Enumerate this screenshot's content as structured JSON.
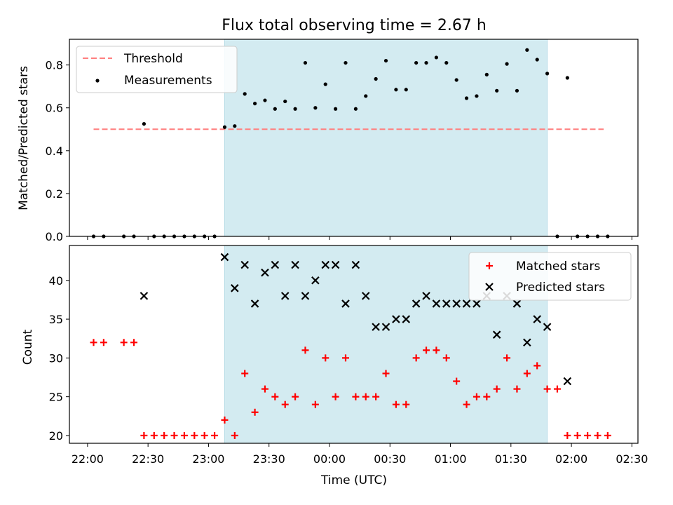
{
  "chart_data": {
    "type": "scatter",
    "title": "Flux total observing time = 2.67 h",
    "xlabel": "Time (UTC)",
    "x_tick_labels": [
      "22:00",
      "22:30",
      "23:00",
      "23:30",
      "00:00",
      "00:30",
      "01:00",
      "01:30",
      "02:00",
      "02:30"
    ],
    "x_range_minutes": [
      -9,
      273
    ],
    "shaded_span_minutes": [
      68,
      228
    ],
    "shade_color": "#d3ebf1",
    "top": {
      "ylabel": "Matched/Predicted stars",
      "ylim": [
        0,
        0.92
      ],
      "yticks": [
        "0.0",
        "0.2",
        "0.4",
        "0.6",
        "0.8"
      ],
      "legend": {
        "position": "upper-left",
        "items": [
          "Threshold",
          "Measurements"
        ]
      },
      "threshold": {
        "name": "Threshold",
        "value": 0.5,
        "x": [
          3,
          256
        ],
        "color": "#ff7f7f"
      },
      "measurements": {
        "name": "Measurements",
        "color": "#000000",
        "x": [
          3,
          8,
          18,
          23,
          28,
          33,
          38,
          43,
          48,
          53,
          58,
          63,
          68,
          73,
          78,
          83,
          88,
          93,
          98,
          103,
          108,
          113,
          118,
          123,
          128,
          133,
          138,
          143,
          148,
          153,
          158,
          163,
          168,
          173,
          178,
          183,
          188,
          193,
          198,
          203,
          208,
          213,
          218,
          223,
          228,
          233,
          238,
          243,
          248,
          253,
          258
        ],
        "y": [
          0,
          0,
          0,
          0,
          0.525,
          0,
          0,
          0,
          0,
          0,
          0,
          0,
          0.51,
          0.515,
          0.665,
          0.62,
          0.635,
          0.595,
          0.63,
          0.595,
          0.81,
          0.6,
          0.71,
          0.595,
          0.81,
          0.595,
          0.655,
          0.735,
          0.82,
          0.685,
          0.685,
          0.81,
          0.81,
          0.835,
          0.81,
          0.73,
          0.645,
          0.655,
          0.755,
          0.68,
          0.805,
          0.68,
          0.87,
          0.825,
          0.76,
          0,
          0.74,
          0,
          0,
          0,
          0
        ]
      }
    },
    "bottom": {
      "ylabel": "Count",
      "ylim": [
        19,
        44.5
      ],
      "yticks": [
        "20",
        "25",
        "30",
        "35",
        "40"
      ],
      "legend": {
        "position": "upper-right",
        "items": [
          "Matched stars",
          "Predicted stars"
        ]
      },
      "matched": {
        "name": "Matched stars",
        "color": "#ff0000",
        "x": [
          3,
          8,
          18,
          23,
          28,
          33,
          38,
          43,
          48,
          53,
          58,
          63,
          68,
          73,
          78,
          83,
          88,
          93,
          98,
          103,
          108,
          113,
          118,
          123,
          128,
          133,
          138,
          143,
          148,
          153,
          158,
          163,
          168,
          173,
          178,
          183,
          188,
          193,
          198,
          203,
          208,
          213,
          218,
          223,
          228,
          233,
          238,
          243,
          248,
          253,
          258
        ],
        "y": [
          32,
          32,
          32,
          32,
          20,
          20,
          20,
          20,
          20,
          20,
          20,
          20,
          22,
          20,
          28,
          23,
          26,
          25,
          24,
          25,
          31,
          24,
          30,
          25,
          30,
          25,
          25,
          25,
          28,
          24,
          24,
          30,
          31,
          31,
          30,
          27,
          24,
          25,
          25,
          26,
          30,
          26,
          28,
          29,
          26,
          26,
          20,
          20,
          20,
          20,
          20
        ]
      },
      "predicted": {
        "name": "Predicted stars",
        "color": "#000000",
        "x": [
          28,
          68,
          73,
          78,
          83,
          88,
          93,
          98,
          103,
          108,
          113,
          118,
          123,
          128,
          133,
          138,
          143,
          148,
          153,
          158,
          163,
          168,
          173,
          178,
          183,
          188,
          193,
          198,
          203,
          208,
          213,
          218,
          223,
          228,
          238
        ],
        "y": [
          38,
          43,
          39,
          42,
          37,
          41,
          42,
          38,
          42,
          38,
          40,
          42,
          42,
          37,
          42,
          38,
          34,
          34,
          35,
          35,
          37,
          38,
          37,
          37,
          37,
          37,
          37,
          38,
          33,
          38,
          37,
          32,
          35,
          34,
          27
        ]
      }
    }
  }
}
